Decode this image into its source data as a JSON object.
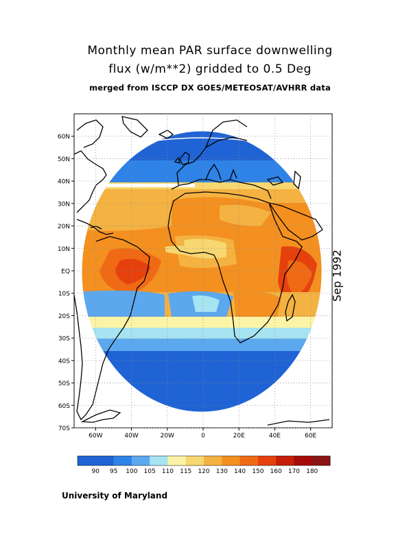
{
  "title_line1": "Monthly mean PAR surface downwelling",
  "title_line2": "flux (w/m**2) gridded to 0.5 Deg",
  "subtitle": "merged from ISCCP DX GOES/METEOSAT/AVHRR data",
  "date_label": "Sep 1992",
  "footer": "University of Maryland",
  "map": {
    "lat_labels": [
      "60N",
      "50N",
      "40N",
      "30N",
      "20N",
      "10N",
      "EQ",
      "10S",
      "20S",
      "30S",
      "40S",
      "50S",
      "60S",
      "70S"
    ],
    "lat_values": [
      60,
      50,
      40,
      30,
      20,
      10,
      0,
      -10,
      -20,
      -30,
      -40,
      -50,
      -60,
      -70
    ],
    "lon_labels": [
      "60W",
      "40W",
      "20W",
      "0",
      "20E",
      "40E",
      "60E"
    ],
    "lon_values": [
      -60,
      -40,
      -20,
      0,
      20,
      40,
      60
    ],
    "lon_range": [
      -72,
      72
    ],
    "lat_range": [
      -70,
      70
    ]
  },
  "colorbar": {
    "labels": [
      "90",
      "95",
      "100",
      "105",
      "110",
      "115",
      "120",
      "130",
      "140",
      "150",
      "160",
      "170",
      "180"
    ],
    "colors": [
      "#1f63d4",
      "#2f82e6",
      "#5ca8ee",
      "#a6e4f2",
      "#fbf3a5",
      "#f6d770",
      "#f4b242",
      "#f39020",
      "#f06a15",
      "#e6410d",
      "#c71e08",
      "#a60a0a",
      "#8a1414"
    ]
  }
}
